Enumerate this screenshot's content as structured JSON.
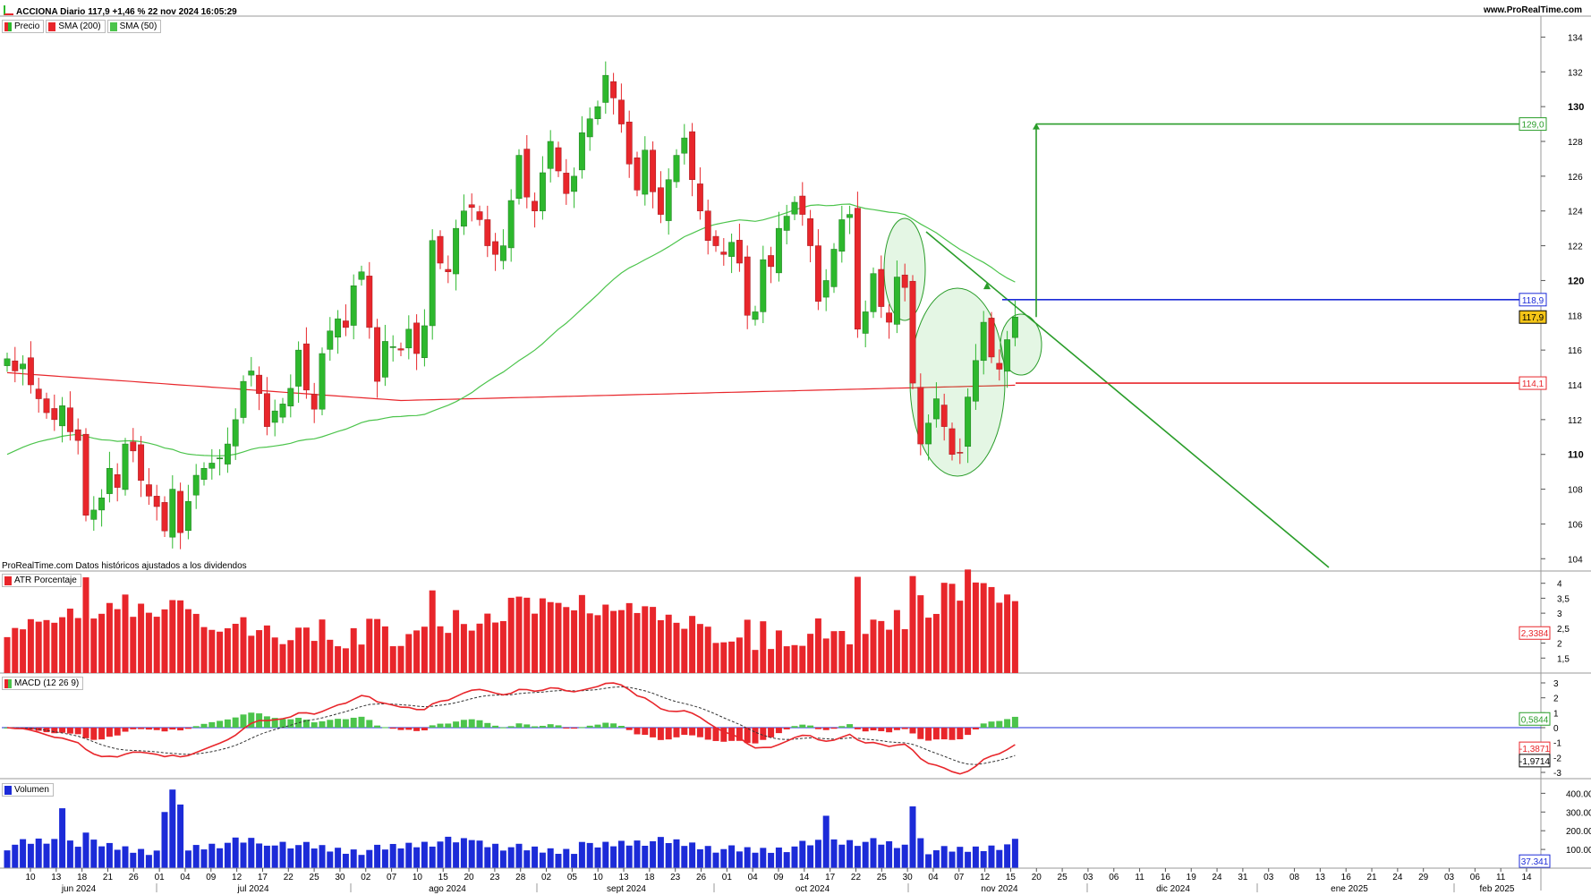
{
  "header": {
    "title": "ACCIONA Diario 117,9 +1,46 % 22 nov 2024 16:05:29",
    "brand": "www.ProRealTime.com",
    "icon": "chart-icon"
  },
  "panels": {
    "price": {
      "legend": [
        {
          "label": "Precio",
          "color": "#e8262b",
          "color2": "#2db82d"
        },
        {
          "label": "SMA (200)",
          "color": "#e8262b"
        },
        {
          "label": "SMA (50)",
          "color": "#4cc44c"
        }
      ],
      "footnote": "ProRealTime.com Datos históricos ajustados a los dividendos",
      "ticks": [
        "104",
        "106",
        "108",
        "110",
        "112",
        "114",
        "116",
        "118",
        "120",
        "122",
        "124",
        "126",
        "128",
        "130",
        "132",
        "134"
      ],
      "tags": [
        {
          "text": "129,0",
          "value": 129.0,
          "color": "#2a9d2a"
        },
        {
          "text": "118,9",
          "value": 118.9,
          "color": "#1c2bd8"
        },
        {
          "text": "117,9",
          "value": 117.9,
          "color": "#000000",
          "bg": "#f5c518"
        },
        {
          "text": "114,1",
          "value": 114.1,
          "color": "#e8262b"
        }
      ]
    },
    "atr": {
      "legend": "ATR Porcentaje",
      "ticks": [
        "1,5",
        "2",
        "2,5",
        "3",
        "3,5",
        "4"
      ],
      "tag": "2,3384",
      "color": "#e8262b"
    },
    "macd": {
      "legend": "MACD (12 26 9)",
      "ticks": [
        "-3",
        "-2",
        "-1",
        "0",
        "1",
        "2",
        "3"
      ],
      "tags": [
        "0,5844",
        "-1,3871",
        "-1,9714"
      ],
      "up": "#4cc44c",
      "down": "#e8262b"
    },
    "volume": {
      "legend": "Volumen",
      "ticks": [
        "100.000",
        "200.000",
        "300.000",
        "400.000"
      ],
      "tag": "37.341",
      "color": "#1c2bd8"
    }
  },
  "axis": {
    "days": [
      "10",
      "13",
      "18",
      "21",
      "26",
      "01",
      "04",
      "09",
      "12",
      "17",
      "22",
      "25",
      "30",
      "02",
      "07",
      "10",
      "15",
      "20",
      "23",
      "28",
      "02",
      "05",
      "10",
      "13",
      "18",
      "23",
      "26",
      "01",
      "04",
      "09",
      "14",
      "17",
      "22",
      "25",
      "30",
      "04",
      "07",
      "12",
      "15",
      "20",
      "25",
      "03",
      "06",
      "11",
      "16",
      "19",
      "24",
      "31",
      "03",
      "08",
      "13",
      "16",
      "21",
      "24",
      "29",
      "03",
      "06",
      "11",
      "14"
    ],
    "months": [
      "jun 2024",
      "jul 2024",
      "ago 2024",
      "sept 2024",
      "oct 2024",
      "nov 2024",
      "dic 2024",
      "ene 2025",
      "feb 2025"
    ]
  },
  "chart_data": {
    "type": "candlestick",
    "title": "ACCIONA Diario 117,9 +1,46 % 22 nov 2024 16:05:29",
    "ylim": [
      103.5,
      135
    ],
    "closes": [
      115.5,
      114.8,
      115.2,
      114.0,
      113.2,
      112.4,
      112.0,
      112.8,
      111.3,
      110.8,
      106.5,
      106.8,
      107.5,
      109.2,
      108.1,
      110.6,
      110.2,
      108.5,
      107.6,
      107.0,
      105.6,
      108.0,
      105.5,
      107.3,
      108.8,
      109.2,
      109.5,
      109.8,
      110.6,
      112.0,
      114.2,
      114.8,
      113.5,
      111.6,
      112.5,
      112.9,
      113.8,
      116.0,
      113.7,
      112.6,
      115.8,
      117.1,
      117.8,
      117.3,
      119.7,
      120.5,
      117.3,
      114.2,
      116.5,
      116.2,
      116.0,
      117.2,
      115.8,
      117.4,
      122.3,
      121.0,
      120.5,
      123.0,
      124.0,
      124.2,
      123.5,
      122.0,
      121.5,
      122.0,
      124.6,
      127.2,
      124.8,
      124.0,
      126.2,
      128.0,
      126.3,
      125.0,
      126.0,
      128.5,
      129.3,
      130.0,
      131.8,
      130.5,
      129.0,
      126.7,
      125.2,
      127.5,
      125.1,
      123.8,
      125.8,
      127.2,
      128.2,
      125.8,
      124.0,
      122.3,
      122.0,
      121.5,
      122.2,
      121.0,
      118.0,
      118.2,
      121.2,
      120.8,
      123.0,
      123.7,
      124.5,
      123.8,
      122.0,
      118.8,
      120.0,
      121.8,
      123.5,
      123.8,
      117.2,
      118.2,
      120.4,
      118.5,
      117.6,
      120.2,
      119.6,
      114.1,
      110.6,
      111.8,
      113.2,
      111.6,
      110.0,
      110.1,
      113.3,
      115.4,
      117.6,
      115.6,
      114.9,
      116.6,
      117.9
    ],
    "sma50_label": "SMA (50)",
    "sma200_label": "SMA (200)",
    "resistance": 118.9,
    "support": 114.1,
    "target": 129.0,
    "last": 117.9,
    "atr_last": 2.3384,
    "macd_last": [
      0.5844,
      -1.3871,
      -1.9714
    ],
    "volume_last": 37341
  }
}
